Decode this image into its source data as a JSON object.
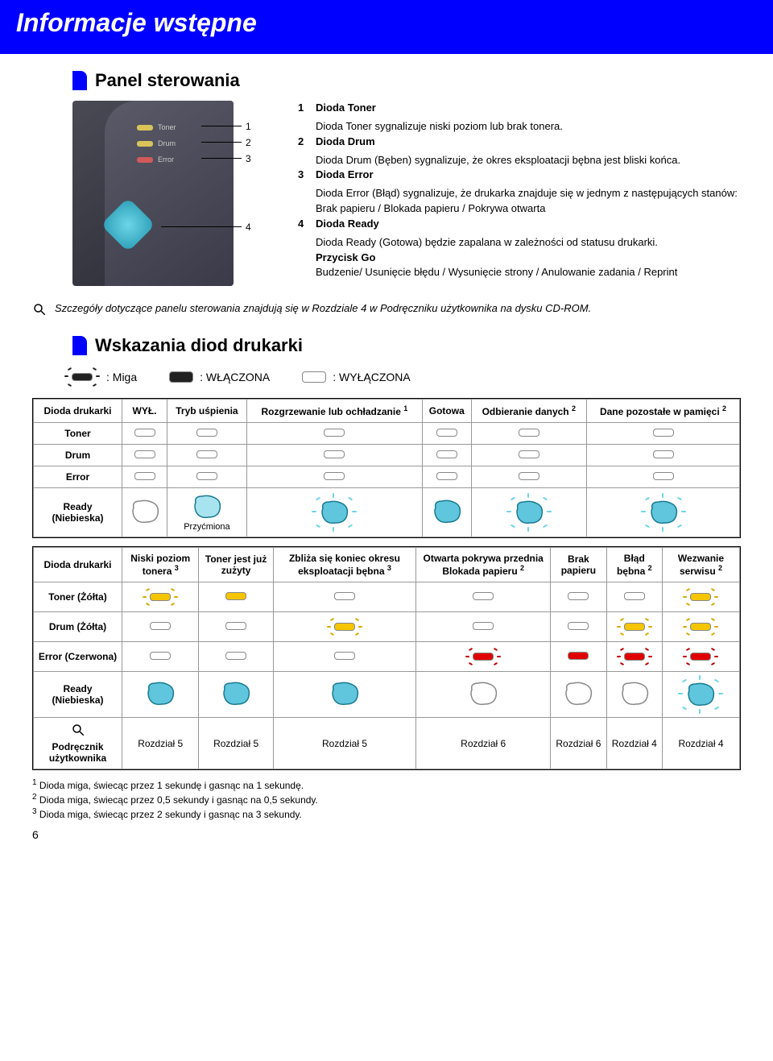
{
  "page_title": "Informacje wstępne",
  "section1_title": "Panel sterowania",
  "section2_title": "Wskazania diod drukarki",
  "panel_labels": {
    "toner": "Toner",
    "drum": "Drum",
    "error": "Error"
  },
  "panel_items": [
    {
      "n": "1",
      "title": "Dioda Toner",
      "desc": "Dioda Toner sygnalizuje niski poziom lub brak tonera."
    },
    {
      "n": "2",
      "title": "Dioda Drum",
      "desc": "Dioda Drum (Bęben) sygnalizuje, że okres eksploatacji bębna jest bliski końca."
    },
    {
      "n": "3",
      "title": "Dioda Error",
      "desc": "Dioda Error (Błąd) sygnalizuje, że drukarka znajduje się w jednym z następujących stanów:\nBrak papieru / Blokada papieru / Pokrywa otwarta"
    },
    {
      "n": "4",
      "title": "Dioda Ready",
      "desc": "Dioda Ready (Gotowa) będzie zapalana w zależności od statusu drukarki."
    }
  ],
  "go_title": "Przycisk Go",
  "go_desc": "Budzenie/ Usunięcie błędu / Wysunięcie strony / Anulowanie zadania / Reprint",
  "note_text": "Szczegóły dotyczące panelu sterowania znajdują się w Rozdziale 4 w Podręczniku użytkownika na dysku CD-ROM.",
  "legend": {
    "miga": ": Miga",
    "on": ": WŁĄCZONA",
    "off": ": WYŁĄCZONA"
  },
  "table1": {
    "headers": [
      "Dioda drukarki",
      "WYŁ.",
      "Tryb uśpienia",
      "Rozgrzewanie lub ochładzanie",
      "Gotowa",
      "Odbieranie danych",
      "Dane pozostałe w pamięci"
    ],
    "header_sup": [
      "",
      "",
      "",
      "1",
      "",
      "2",
      "2"
    ],
    "rows": [
      "Toner",
      "Drum",
      "Error"
    ],
    "ready_label": "Ready (Niebieska)",
    "dim_label": "Przyćmiona",
    "ready_states": [
      "off",
      "dim",
      "blink",
      "on",
      "blink",
      "blink"
    ]
  },
  "table2": {
    "headers": [
      "Dioda drukarki",
      "Niski poziom tonera",
      "Toner jest już zużyty",
      "Zbliża się koniec okresu eksploatacji bębna",
      "Otwarta pokrywa przednia Blokada papieru",
      "Brak papieru",
      "Błąd bębna",
      "Wezwanie serwisu"
    ],
    "header_sup": [
      "",
      "3",
      "",
      "3",
      "2",
      "",
      "2",
      "2"
    ],
    "row_labels": [
      "Toner (Żółta)",
      "Drum (Żółta)",
      "Error (Czerwona)"
    ],
    "toner_row": [
      "y-blink",
      "y-on",
      "off",
      "off",
      "off",
      "off",
      "y-blink"
    ],
    "drum_row": [
      "off",
      "off",
      "y-blink",
      "off",
      "off",
      "y-blink",
      "y-blink"
    ],
    "error_row": [
      "off",
      "off",
      "off",
      "r-blink",
      "r-on",
      "r-blink",
      "r-blink"
    ],
    "ready_label": "Ready (Niebieska)",
    "ready_states": [
      "on",
      "on",
      "on",
      "off",
      "off",
      "off",
      "blink"
    ],
    "manual_label": "Podręcznik użytkownika",
    "manual_refs": [
      "Rozdział 5",
      "Rozdział 5",
      "Rozdział 5",
      "Rozdział 6",
      "Rozdział 6",
      "Rozdział 4",
      "Rozdział 4"
    ]
  },
  "footnotes": [
    {
      "n": "1",
      "t": "Dioda miga, świecąc przez 1 sekundę i gasnąc na 1 sekundę."
    },
    {
      "n": "2",
      "t": "Dioda miga, świecąc przez 0,5 sekundy i gasnąc na 0,5 sekundy."
    },
    {
      "n": "3",
      "t": "Dioda miga, świecąc przez 2 sekundy i gasnąc na 3 sekundy."
    }
  ],
  "page_number": "6",
  "colors": {
    "blue": "#0000ff",
    "cyan": "#5fc6de",
    "cyan_dark": "#2a9db5",
    "yellow": "#f5c500",
    "red": "#e00000",
    "led_off_border": "#888888"
  }
}
